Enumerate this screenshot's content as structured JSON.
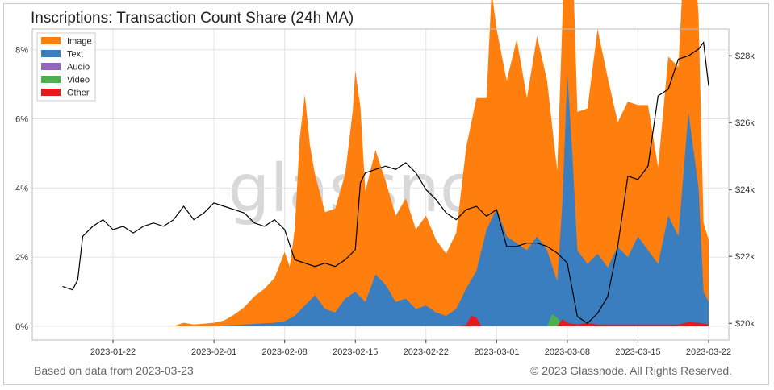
{
  "title": "Inscriptions: Transaction Count Share (24h MA)",
  "footer": {
    "source": "Based on data from 2023-03-23",
    "copyright": "© 2023 Glassnode. All Rights Reserved."
  },
  "watermark": "glassnode",
  "chart_data": {
    "type": "area",
    "x_start": "2023-01-17",
    "x_end": "2023-03-22",
    "xlim": [
      "2023-01-14",
      "2023-03-24"
    ],
    "x_ticks": [
      "2023-01-22",
      "2023-02-01",
      "2023-02-08",
      "2023-02-15",
      "2023-02-22",
      "2023-03-01",
      "2023-03-08",
      "2023-03-15",
      "2023-03-22"
    ],
    "y_left": {
      "ylim": [
        -0.4,
        8.6
      ],
      "ticks": [
        0,
        2,
        4,
        6,
        8
      ],
      "tick_labels": [
        "0%",
        "2%",
        "4%",
        "6%",
        "8%"
      ]
    },
    "y_right": {
      "ylim": [
        19500,
        28800
      ],
      "ticks": [
        20000,
        22000,
        24000,
        26000,
        28000
      ],
      "tick_labels": [
        "$20k",
        "$22k",
        "$24k",
        "$26k",
        "$28k"
      ]
    },
    "grid": true,
    "legend_position": "top-left",
    "series": [
      {
        "name": "Image",
        "color": "#ff7f0e",
        "points": [
          [
            "2023-01-17",
            0
          ],
          [
            "2023-01-28",
            0
          ],
          [
            "2023-01-29",
            0.1
          ],
          [
            "2023-01-30",
            0.05
          ],
          [
            "2023-02-01",
            0.1
          ],
          [
            "2023-02-02",
            0.15
          ],
          [
            "2023-02-03",
            0.3
          ],
          [
            "2023-02-04",
            0.5
          ],
          [
            "2023-02-05",
            0.8
          ],
          [
            "2023-02-06",
            1.0
          ],
          [
            "2023-02-07",
            1.3
          ],
          [
            "2023-02-08",
            2.0
          ],
          [
            "2023-02-08 12:00",
            1.5
          ],
          [
            "2023-02-09",
            2.5
          ],
          [
            "2023-02-09 12:00",
            5.0
          ],
          [
            "2023-02-10",
            6.1
          ],
          [
            "2023-02-10 12:00",
            4.5
          ],
          [
            "2023-02-11",
            3.5
          ],
          [
            "2023-02-12",
            2.8
          ],
          [
            "2023-02-13",
            3.0
          ],
          [
            "2023-02-14",
            3.6
          ],
          [
            "2023-02-14 18:00",
            5.3
          ],
          [
            "2023-02-15",
            6.4
          ],
          [
            "2023-02-15 12:00",
            5.5
          ],
          [
            "2023-02-16",
            3.2
          ],
          [
            "2023-02-17",
            3.6
          ],
          [
            "2023-02-18",
            3.0
          ],
          [
            "2023-02-19",
            2.5
          ],
          [
            "2023-02-20",
            2.9
          ],
          [
            "2023-02-21",
            2.3
          ],
          [
            "2023-02-22",
            2.6
          ],
          [
            "2023-02-23",
            2.1
          ],
          [
            "2023-02-24",
            1.8
          ],
          [
            "2023-02-25",
            2.2
          ],
          [
            "2023-02-26",
            4.1
          ],
          [
            "2023-02-27",
            5.0
          ],
          [
            "2023-02-28",
            3.8
          ],
          [
            "2023-02-28 12:00",
            6.6
          ],
          [
            "2023-03-01",
            5.2
          ],
          [
            "2023-03-02",
            4.5
          ],
          [
            "2023-03-03",
            5.9
          ],
          [
            "2023-03-04",
            4.4
          ],
          [
            "2023-03-05",
            5.8
          ],
          [
            "2023-03-06",
            4.9
          ],
          [
            "2023-03-07",
            3.2
          ],
          [
            "2023-03-07 18:00",
            6.2
          ],
          [
            "2023-03-08",
            8.2
          ],
          [
            "2023-03-08 12:00",
            6.0
          ],
          [
            "2023-03-09",
            4.0
          ],
          [
            "2023-03-10",
            4.5
          ],
          [
            "2023-03-11",
            6.5
          ],
          [
            "2023-03-12",
            5.5
          ],
          [
            "2023-03-13",
            3.6
          ],
          [
            "2023-03-14",
            4.5
          ],
          [
            "2023-03-15",
            3.8
          ],
          [
            "2023-03-16",
            4.2
          ],
          [
            "2023-03-17",
            2.8
          ],
          [
            "2023-03-18",
            4.6
          ],
          [
            "2023-03-19",
            4.9
          ],
          [
            "2023-03-20",
            7.0
          ],
          [
            "2023-03-21",
            5.0
          ],
          [
            "2023-03-21 12:00",
            2.0
          ],
          [
            "2023-03-22",
            1.8
          ]
        ]
      },
      {
        "name": "Text",
        "color": "#3a7ebf",
        "points": [
          [
            "2023-01-17",
            0
          ],
          [
            "2023-02-01",
            0
          ],
          [
            "2023-02-04",
            0.05
          ],
          [
            "2023-02-07",
            0.1
          ],
          [
            "2023-02-08",
            0.15
          ],
          [
            "2023-02-09",
            0.3
          ],
          [
            "2023-02-10",
            0.6
          ],
          [
            "2023-02-11",
            0.9
          ],
          [
            "2023-02-12",
            0.5
          ],
          [
            "2023-02-13",
            0.4
          ],
          [
            "2023-02-14",
            0.8
          ],
          [
            "2023-02-15",
            1.0
          ],
          [
            "2023-02-16",
            0.7
          ],
          [
            "2023-02-17",
            1.5
          ],
          [
            "2023-02-18",
            1.2
          ],
          [
            "2023-02-19",
            0.7
          ],
          [
            "2023-02-20",
            0.8
          ],
          [
            "2023-02-21",
            0.5
          ],
          [
            "2023-02-22",
            0.6
          ],
          [
            "2023-02-23",
            0.4
          ],
          [
            "2023-02-24",
            0.3
          ],
          [
            "2023-02-25",
            0.5
          ],
          [
            "2023-02-26",
            1.1
          ],
          [
            "2023-02-27",
            1.6
          ],
          [
            "2023-02-28",
            2.8
          ],
          [
            "2023-03-01",
            3.4
          ],
          [
            "2023-03-02",
            2.6
          ],
          [
            "2023-03-03",
            2.4
          ],
          [
            "2023-03-04",
            2.2
          ],
          [
            "2023-03-05",
            2.6
          ],
          [
            "2023-03-06",
            2.2
          ],
          [
            "2023-03-07",
            1.3
          ],
          [
            "2023-03-07 12:00",
            3.5
          ],
          [
            "2023-03-08",
            7.3
          ],
          [
            "2023-03-08 12:00",
            5.0
          ],
          [
            "2023-03-09",
            2.2
          ],
          [
            "2023-03-10",
            1.8
          ],
          [
            "2023-03-11",
            2.1
          ],
          [
            "2023-03-12",
            1.7
          ],
          [
            "2023-03-13",
            2.3
          ],
          [
            "2023-03-14",
            2.0
          ],
          [
            "2023-03-15",
            2.6
          ],
          [
            "2023-03-16",
            2.2
          ],
          [
            "2023-03-17",
            1.8
          ],
          [
            "2023-03-18",
            3.2
          ],
          [
            "2023-03-19",
            2.6
          ],
          [
            "2023-03-20",
            6.2
          ],
          [
            "2023-03-21",
            4.0
          ],
          [
            "2023-03-21 12:00",
            1.0
          ],
          [
            "2023-03-22",
            0.7
          ]
        ]
      },
      {
        "name": "Audio",
        "color": "#9467bd",
        "points": [
          [
            "2023-01-17",
            0
          ],
          [
            "2023-03-22",
            0
          ]
        ]
      },
      {
        "name": "Video",
        "color": "#4caf50",
        "points": [
          [
            "2023-01-17",
            0
          ],
          [
            "2023-03-06",
            0
          ],
          [
            "2023-03-06 12:00",
            0.35
          ],
          [
            "2023-03-07",
            0.25
          ],
          [
            "2023-03-07 12:00",
            0.05
          ],
          [
            "2023-03-08",
            0
          ],
          [
            "2023-03-22",
            0
          ]
        ]
      },
      {
        "name": "Other",
        "color": "#e41a1c",
        "points": [
          [
            "2023-01-17",
            0
          ],
          [
            "2023-02-25",
            0
          ],
          [
            "2023-02-26",
            0.05
          ],
          [
            "2023-02-26 12:00",
            0.3
          ],
          [
            "2023-02-27",
            0.25
          ],
          [
            "2023-02-27 12:00",
            0
          ],
          [
            "2023-03-07",
            0
          ],
          [
            "2023-03-07 12:00",
            0.2
          ],
          [
            "2023-03-08",
            0.1
          ],
          [
            "2023-03-09",
            0.05
          ],
          [
            "2023-03-10",
            0.1
          ],
          [
            "2023-03-11",
            0.05
          ],
          [
            "2023-03-19",
            0.05
          ],
          [
            "2023-03-20",
            0.12
          ],
          [
            "2023-03-21",
            0.1
          ],
          [
            "2023-03-22",
            0.05
          ]
        ]
      }
    ],
    "price_series": {
      "axis": "right",
      "color": "#000000",
      "points": [
        [
          "2023-01-17",
          21100
        ],
        [
          "2023-01-18",
          21000
        ],
        [
          "2023-01-18 12:00",
          21300
        ],
        [
          "2023-01-19",
          22600
        ],
        [
          "2023-01-20",
          22900
        ],
        [
          "2023-01-21",
          23100
        ],
        [
          "2023-01-22",
          22800
        ],
        [
          "2023-01-23",
          22900
        ],
        [
          "2023-01-24",
          22700
        ],
        [
          "2023-01-25",
          22900
        ],
        [
          "2023-01-26",
          23000
        ],
        [
          "2023-01-27",
          22900
        ],
        [
          "2023-01-28",
          23100
        ],
        [
          "2023-01-29",
          23500
        ],
        [
          "2023-01-30",
          23100
        ],
        [
          "2023-01-31",
          23300
        ],
        [
          "2023-02-01",
          23600
        ],
        [
          "2023-02-02",
          23500
        ],
        [
          "2023-02-03",
          23400
        ],
        [
          "2023-02-04",
          23300
        ],
        [
          "2023-02-05",
          23000
        ],
        [
          "2023-02-06",
          22900
        ],
        [
          "2023-02-07",
          23100
        ],
        [
          "2023-02-08",
          22800
        ],
        [
          "2023-02-09",
          21900
        ],
        [
          "2023-02-10",
          21800
        ],
        [
          "2023-02-11",
          21700
        ],
        [
          "2023-02-12",
          21800
        ],
        [
          "2023-02-13",
          21700
        ],
        [
          "2023-02-14",
          21900
        ],
        [
          "2023-02-15",
          22200
        ],
        [
          "2023-02-15 12:00",
          24200
        ],
        [
          "2023-02-16",
          24500
        ],
        [
          "2023-02-17",
          24600
        ],
        [
          "2023-02-18",
          24700
        ],
        [
          "2023-02-19",
          24600
        ],
        [
          "2023-02-20",
          24800
        ],
        [
          "2023-02-21",
          24500
        ],
        [
          "2023-02-22",
          24000
        ],
        [
          "2023-02-23",
          23700
        ],
        [
          "2023-02-24",
          23300
        ],
        [
          "2023-02-25",
          23100
        ],
        [
          "2023-02-26",
          23400
        ],
        [
          "2023-02-27",
          23500
        ],
        [
          "2023-02-28",
          23200
        ],
        [
          "2023-03-01",
          23400
        ],
        [
          "2023-03-02",
          22300
        ],
        [
          "2023-03-03",
          22300
        ],
        [
          "2023-03-04",
          22400
        ],
        [
          "2023-03-05",
          22400
        ],
        [
          "2023-03-06",
          22300
        ],
        [
          "2023-03-07",
          22100
        ],
        [
          "2023-03-08",
          21800
        ],
        [
          "2023-03-09",
          20200
        ],
        [
          "2023-03-10",
          20000
        ],
        [
          "2023-03-11",
          20300
        ],
        [
          "2023-03-12",
          20800
        ],
        [
          "2023-03-13",
          22300
        ],
        [
          "2023-03-14",
          24400
        ],
        [
          "2023-03-15",
          24300
        ],
        [
          "2023-03-16",
          24700
        ],
        [
          "2023-03-17",
          26800
        ],
        [
          "2023-03-18",
          27000
        ],
        [
          "2023-03-19",
          27900
        ],
        [
          "2023-03-20",
          28000
        ],
        [
          "2023-03-21",
          28200
        ],
        [
          "2023-03-21 12:00",
          28400
        ],
        [
          "2023-03-22",
          27100
        ]
      ]
    }
  }
}
